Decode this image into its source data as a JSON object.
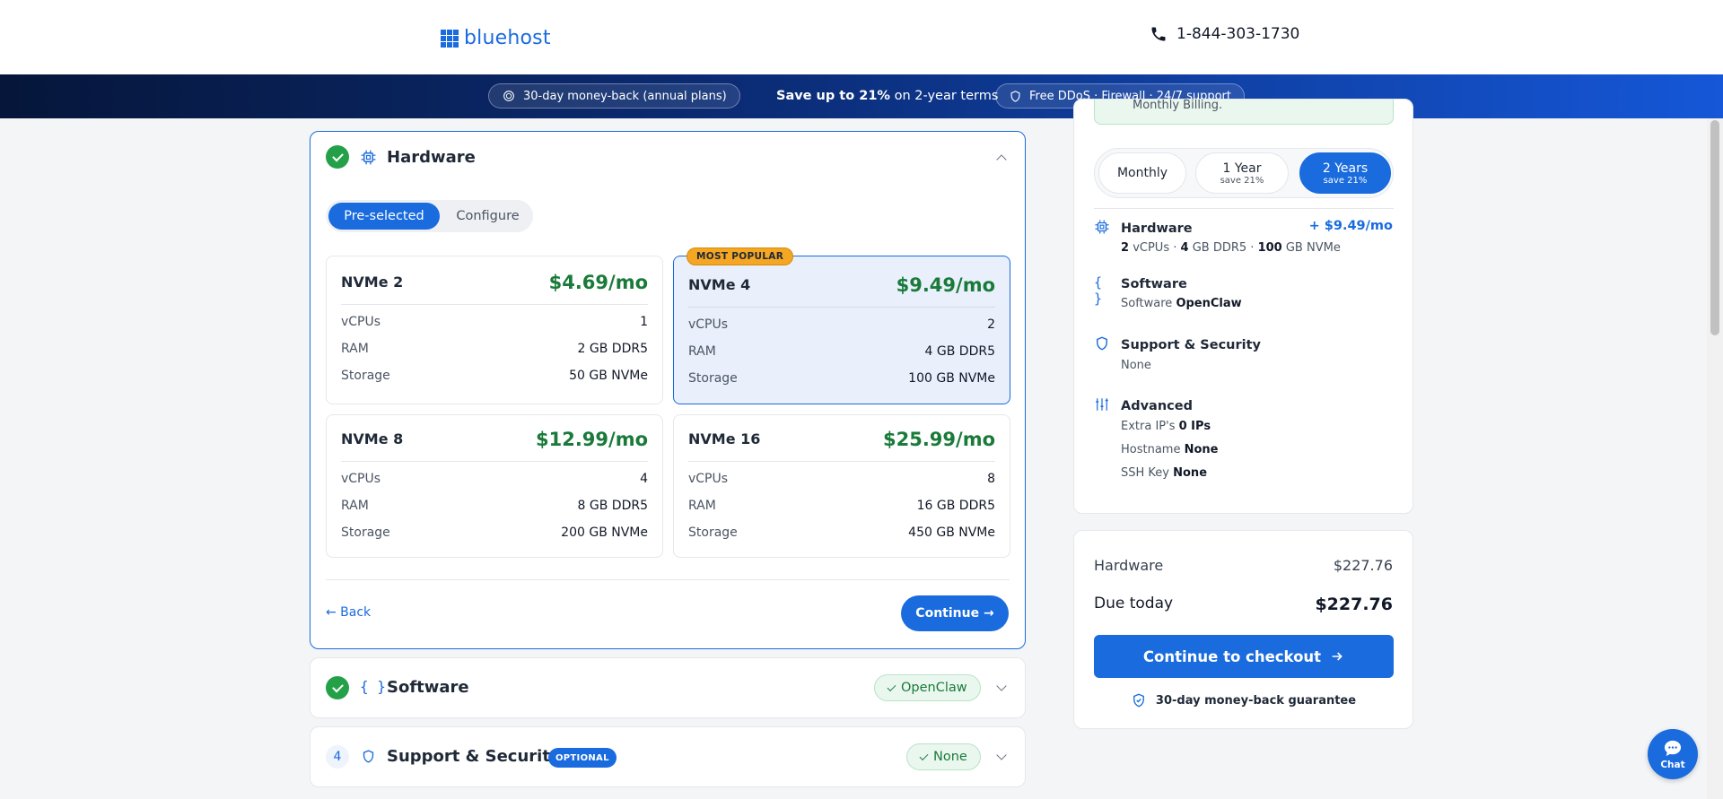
{
  "header": {
    "logo_text": "bluehost",
    "phone": "1-844-303-1730"
  },
  "promo_band": {
    "money_back": "30-day money-back (annual plans)",
    "save_bold": "Save up to 21%",
    "save_rest": "on 2-year terms",
    "features": "Free DDoS · Firewall · 24/7 support"
  },
  "hardware_section": {
    "title": "Hardware",
    "mode_preselected": "Pre-selected",
    "mode_configure": "Configure",
    "popular_badge": "MOST POPULAR",
    "spec_labels": {
      "vcpus": "vCPUs",
      "ram": "RAM",
      "storage": "Storage"
    },
    "plans": [
      {
        "name": "NVMe 2",
        "price": "$4.69/mo",
        "vcpus": "1",
        "ram": "2 GB DDR5",
        "storage": "50 GB NVMe",
        "selected": false
      },
      {
        "name": "NVMe 4",
        "price": "$9.49/mo",
        "vcpus": "2",
        "ram": "4 GB DDR5",
        "storage": "100 GB NVMe",
        "selected": true
      },
      {
        "name": "NVMe 8",
        "price": "$12.99/mo",
        "vcpus": "4",
        "ram": "8 GB DDR5",
        "storage": "200 GB NVMe",
        "selected": false
      },
      {
        "name": "NVMe 16",
        "price": "$25.99/mo",
        "vcpus": "8",
        "ram": "16 GB DDR5",
        "storage": "450 GB NVMe",
        "selected": false
      }
    ],
    "back_label": "← Back",
    "continue_label": "Continue →"
  },
  "software_section": {
    "title": "Software",
    "status": "OpenClaw"
  },
  "support_section": {
    "step": "4",
    "title": "Support & Security",
    "badge": "OPTIONAL",
    "status": "None"
  },
  "summary": {
    "note": "Monthly Billing.",
    "terms": [
      {
        "label": "Monthly",
        "save": ""
      },
      {
        "label": "1 Year",
        "save": "save 21%"
      },
      {
        "label": "2 Years",
        "save": "save 21%"
      }
    ],
    "selected_term": "2 Years",
    "hardware": {
      "title": "Hardware",
      "price_add": "+ $9.49/mo",
      "vcpus_val": "2",
      "vcpus_unit": "vCPUs",
      "ram_val": "4",
      "ram_unit": "GB DDR5",
      "storage_val": "100",
      "storage_unit": "GB NVMe",
      "sep": "·"
    },
    "software": {
      "title": "Software",
      "label": "Software",
      "value": "OpenClaw"
    },
    "support": {
      "title": "Support & Security",
      "value": "None"
    },
    "advanced": {
      "title": "Advanced",
      "extra_ips_label": "Extra IP's",
      "extra_ips_value": "0 IPs",
      "hostname_label": "Hostname",
      "hostname_value": "None",
      "ssh_label": "SSH Key",
      "ssh_value": "None"
    }
  },
  "totals": {
    "hardware_label": "Hardware",
    "hardware_value": "$227.76",
    "due_label": "Due today",
    "due_value": "$227.76",
    "checkout_label": "Continue to checkout",
    "guarantee": "30-day money-back guarantee"
  },
  "chat_label": "Chat",
  "colors": {
    "brand_blue": "#196bde",
    "price_green": "#1a7a3a",
    "check_green": "#24a148",
    "popular_orange": "#f5a623"
  }
}
